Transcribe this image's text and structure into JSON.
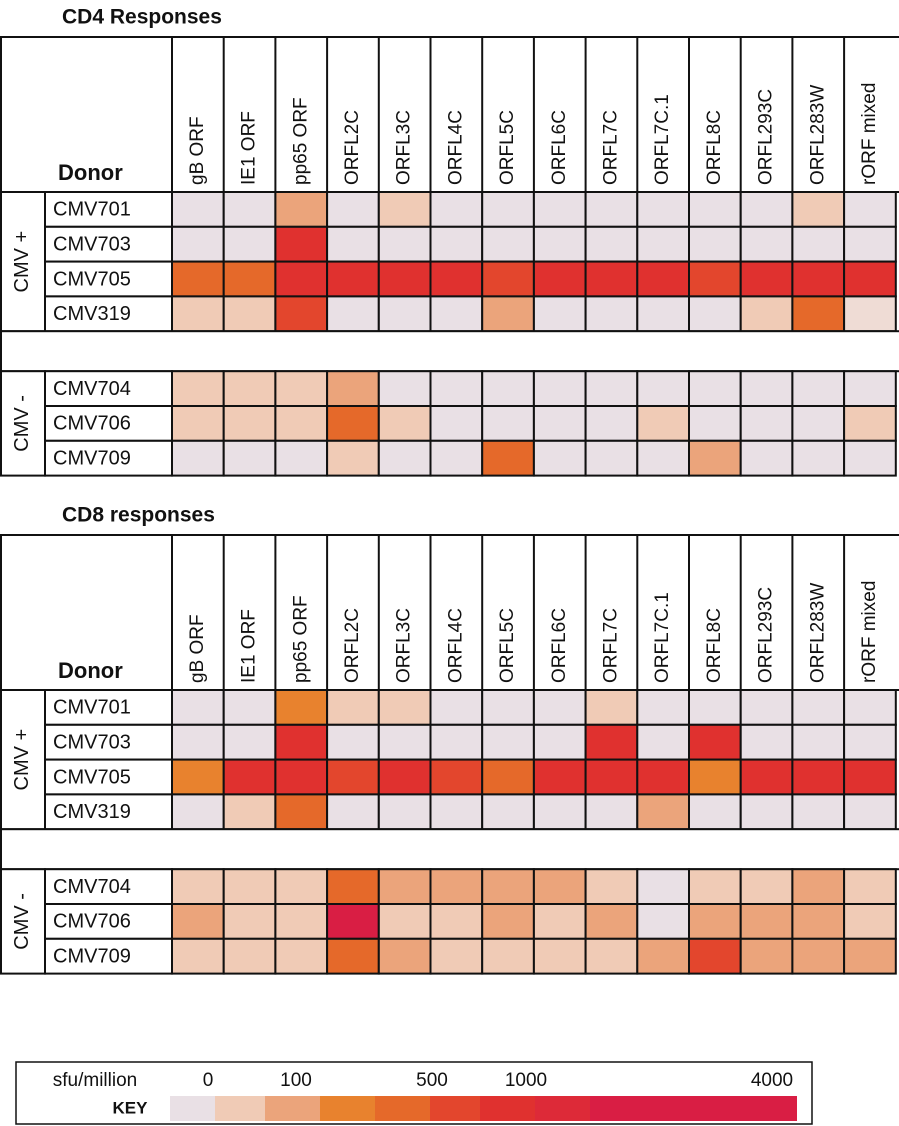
{
  "chart_data": [
    {
      "type": "heatmap",
      "title": "CD4 Responses",
      "corner_label": "Donor",
      "columns": [
        "gB ORF",
        "IE1 ORF",
        "pp65 ORF",
        "ORFL2C",
        "ORFL3C",
        "ORFL4C",
        "ORFL5C",
        "ORFL6C",
        "ORFL7C",
        "ORFL7C.1",
        "ORFL8C",
        "ORFL293C",
        "ORFL283W",
        "rORF mixed"
      ],
      "groups": [
        {
          "label": "CMV +",
          "rows": [
            {
              "name": "CMV701",
              "colors": [
                "#e9e0e5",
                "#e9e0e5",
                "#eba47b",
                "#e9e0e5",
                "#f0cbb6",
                "#e9e0e5",
                "#e9e0e5",
                "#e9e0e5",
                "#e9e0e5",
                "#e9e0e5",
                "#e9e0e5",
                "#e9e0e5",
                "#f0cbb6",
                "#e9e0e5"
              ]
            },
            {
              "name": "CMV703",
              "colors": [
                "#e9e0e5",
                "#e9e0e5",
                "#e0312f",
                "#e9e0e5",
                "#e9e0e5",
                "#e9e0e5",
                "#e9e0e5",
                "#e9e0e5",
                "#e9e0e5",
                "#e9e0e5",
                "#e9e0e5",
                "#e9e0e5",
                "#e9e0e5",
                "#e9e0e5"
              ]
            },
            {
              "name": "CMV705",
              "colors": [
                "#e5692a",
                "#e5692a",
                "#e0312f",
                "#e0312f",
                "#e0312f",
                "#e0312f",
                "#e3462d",
                "#e0312f",
                "#e0312f",
                "#e0312f",
                "#e3462d",
                "#e0312f",
                "#e0312f",
                "#e0312f"
              ]
            },
            {
              "name": "CMV319",
              "colors": [
                "#f0cbb6",
                "#f0cbb6",
                "#e3462d",
                "#e9e0e5",
                "#e9e0e5",
                "#e9e0e5",
                "#eba47b",
                "#e9e0e5",
                "#e9e0e5",
                "#e9e0e5",
                "#e9e0e5",
                "#f0cbb6",
                "#e5692a",
                "#efdcd5"
              ]
            }
          ]
        },
        {
          "label": "CMV -",
          "rows": [
            {
              "name": "CMV704",
              "colors": [
                "#f0cbb6",
                "#f0cbb6",
                "#f0cbb6",
                "#eba47b",
                "#e9e0e5",
                "#e9e0e5",
                "#e9e0e5",
                "#e9e0e5",
                "#e9e0e5",
                "#e9e0e5",
                "#e9e0e5",
                "#e9e0e5",
                "#e9e0e5",
                "#e9e0e5"
              ]
            },
            {
              "name": "CMV706",
              "colors": [
                "#f0cbb6",
                "#f0cbb6",
                "#f0cbb6",
                "#e5692a",
                "#f0cbb6",
                "#e9e0e5",
                "#e9e0e5",
                "#e9e0e5",
                "#e9e0e5",
                "#f0cbb6",
                "#e9e0e5",
                "#e9e0e5",
                "#e9e0e5",
                "#f0cbb6"
              ]
            },
            {
              "name": "CMV709",
              "colors": [
                "#e9e0e5",
                "#e9e0e5",
                "#e9e0e5",
                "#f0cbb6",
                "#e9e0e5",
                "#e9e0e5",
                "#e5692a",
                "#e9e0e5",
                "#e9e0e5",
                "#e9e0e5",
                "#eba47b",
                "#e9e0e5",
                "#e9e0e5",
                "#e9e0e5"
              ]
            }
          ]
        }
      ]
    },
    {
      "type": "heatmap",
      "title": "CD8 responses",
      "corner_label": "Donor",
      "columns": [
        "gB ORF",
        "IE1 ORF",
        "pp65 ORF",
        "ORFL2C",
        "ORFL3C",
        "ORFL4C",
        "ORFL5C",
        "ORFL6C",
        "ORFL7C",
        "ORFL7C.1",
        "ORFL8C",
        "ORFL293C",
        "ORFL283W",
        "rORF mixed"
      ],
      "groups": [
        {
          "label": "CMV +",
          "rows": [
            {
              "name": "CMV701",
              "colors": [
                "#e9e0e5",
                "#e9e0e5",
                "#e8822e",
                "#f0cbb6",
                "#f0cbb6",
                "#e9e0e5",
                "#e9e0e5",
                "#e9e0e5",
                "#f0cbb6",
                "#e9e0e5",
                "#e9e0e5",
                "#e9e0e5",
                "#e9e0e5",
                "#e9e0e5"
              ]
            },
            {
              "name": "CMV703",
              "colors": [
                "#e9e0e5",
                "#e9e0e5",
                "#e0312f",
                "#e9e0e5",
                "#e9e0e5",
                "#e9e0e5",
                "#e9e0e5",
                "#e9e0e5",
                "#e0312f",
                "#e9e0e5",
                "#e0312f",
                "#e9e0e5",
                "#e9e0e5",
                "#e9e0e5"
              ]
            },
            {
              "name": "CMV705",
              "colors": [
                "#e8822e",
                "#e0312f",
                "#e0312f",
                "#e3462d",
                "#e0312f",
                "#e3462d",
                "#e5692a",
                "#e0312f",
                "#e0312f",
                "#e0312f",
                "#e8822e",
                "#e0312f",
                "#e0312f",
                "#e0312f"
              ]
            },
            {
              "name": "CMV319",
              "colors": [
                "#e9e0e5",
                "#f0cbb6",
                "#e5692a",
                "#e9e0e5",
                "#e9e0e5",
                "#e9e0e5",
                "#e9e0e5",
                "#e9e0e5",
                "#e9e0e5",
                "#eba47b",
                "#e9e0e5",
                "#e9e0e5",
                "#e9e0e5",
                "#e9e0e5"
              ]
            }
          ]
        },
        {
          "label": "CMV -",
          "rows": [
            {
              "name": "CMV704",
              "colors": [
                "#f0cbb6",
                "#f0cbb6",
                "#f0cbb6",
                "#e5692a",
                "#eba47b",
                "#eba47b",
                "#eba47b",
                "#eba47b",
                "#f0cbb6",
                "#e9e0e5",
                "#f0cbb6",
                "#f0cbb6",
                "#eba47b",
                "#f0cbb6"
              ]
            },
            {
              "name": "CMV706",
              "colors": [
                "#eba47b",
                "#f0cbb6",
                "#f0cbb6",
                "#d91e44",
                "#f0cbb6",
                "#f0cbb6",
                "#eba47b",
                "#f0cbb6",
                "#eba47b",
                "#e9e0e5",
                "#eba47b",
                "#eba47b",
                "#eba47b",
                "#f0cbb6"
              ]
            },
            {
              "name": "CMV709",
              "colors": [
                "#f0cbb6",
                "#f0cbb6",
                "#f0cbb6",
                "#e5692a",
                "#eba47b",
                "#f0cbb6",
                "#f0cbb6",
                "#f0cbb6",
                "#f0cbb6",
                "#eba47b",
                "#e3462d",
                "#eba47b",
                "#eba47b",
                "#eba47b"
              ]
            }
          ]
        }
      ]
    }
  ],
  "key": {
    "unit_label": "sfu/million",
    "title": "KEY",
    "tick_labels": [
      "0",
      "100",
      "500",
      "1000",
      "4000"
    ],
    "colors": [
      "#e9e0e5",
      "#f0cbb6",
      "#eba47b",
      "#e8822e",
      "#e5692a",
      "#e3462d",
      "#e0312f",
      "#dd2a38",
      "#d91e44"
    ]
  }
}
